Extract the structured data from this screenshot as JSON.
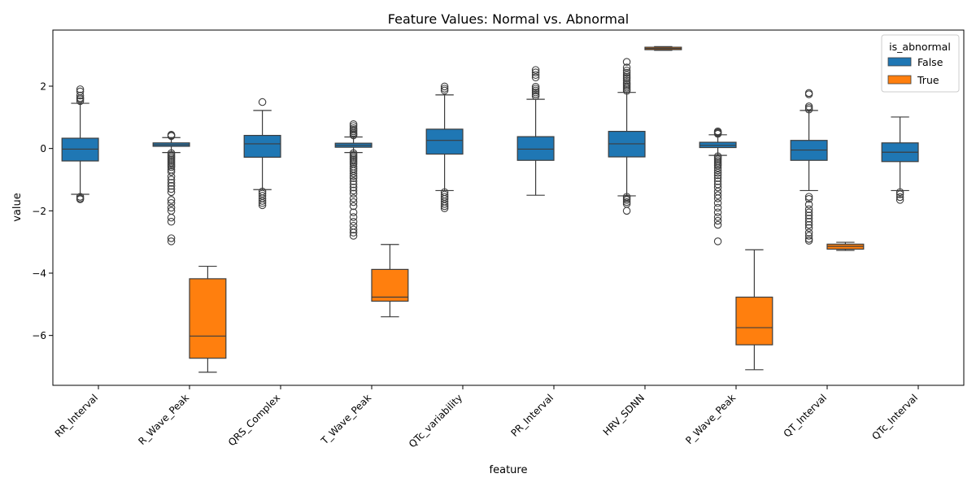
{
  "chart_data": {
    "type": "box",
    "title": "Feature Values: Normal vs. Abnormal",
    "xlabel": "feature",
    "ylabel": "value",
    "ylim": [
      -7.6,
      3.8
    ],
    "yticks": [
      2,
      0,
      -2,
      -4,
      -6
    ],
    "grid": false,
    "legend": {
      "title": "is_abnormal",
      "placement": "top-right",
      "entries": [
        {
          "label": "False",
          "color": "#1f77b4"
        },
        {
          "label": "True",
          "color": "#ff7f0e"
        }
      ]
    },
    "categories": [
      "RR_Interval",
      "R_Wave_Peak",
      "QRS_Complex",
      "T_Wave_Peak",
      "QTc_variability",
      "PR_Interval",
      "HRV_SDNN",
      "P_Wave_Peak",
      "QT_Interval",
      "QTc_Interval"
    ],
    "series": [
      {
        "name": "False",
        "color": "#1f77b4",
        "boxes": [
          {
            "whisker_low": -1.47,
            "q1": -0.4,
            "median": -0.02,
            "q3": 0.33,
            "whisker_high": 1.45,
            "outliers": [
              1.9,
              1.83,
              1.7,
              1.62,
              1.58,
              1.52,
              -1.55,
              -1.6,
              -1.63
            ]
          },
          {
            "whisker_low": -0.13,
            "q1": 0.07,
            "median": 0.12,
            "q3": 0.18,
            "whisker_high": 0.35,
            "outliers": [
              0.44,
              0.42,
              0.4,
              -0.15,
              -0.2,
              -0.25,
              -0.3,
              -0.35,
              -0.4,
              -0.45,
              -0.5,
              -0.55,
              -0.6,
              -0.68,
              -0.75,
              -0.9,
              -1.0,
              -1.1,
              -1.2,
              -1.3,
              -1.4,
              -1.65,
              -1.75,
              -1.9,
              -2.0,
              -2.22,
              -2.35,
              -2.88,
              -2.98
            ]
          },
          {
            "whisker_low": -1.32,
            "q1": -0.28,
            "median": 0.15,
            "q3": 0.42,
            "whisker_high": 1.22,
            "outliers": [
              1.49,
              -1.38,
              -1.45,
              -1.52,
              -1.6,
              -1.68,
              -1.75,
              -1.82
            ]
          },
          {
            "whisker_low": -0.13,
            "q1": 0.04,
            "median": 0.1,
            "q3": 0.17,
            "whisker_high": 0.37,
            "outliers": [
              0.78,
              0.72,
              0.65,
              0.6,
              0.55,
              0.5,
              0.46,
              0.42,
              -0.15,
              -0.2,
              -0.25,
              -0.3,
              -0.35,
              -0.4,
              -0.45,
              -0.5,
              -0.58,
              -0.65,
              -0.72,
              -0.8,
              -0.88,
              -0.95,
              -1.05,
              -1.15,
              -1.25,
              -1.35,
              -1.45,
              -1.6,
              -1.72,
              -1.85,
              -2.05,
              -2.2,
              -2.35,
              -2.48,
              -2.6,
              -2.7,
              -2.8
            ]
          },
          {
            "whisker_low": -1.35,
            "q1": -0.18,
            "median": 0.26,
            "q3": 0.62,
            "whisker_high": 1.72,
            "outliers": [
              1.99,
              1.92,
              1.86,
              -1.4,
              -1.48,
              -1.55,
              -1.62,
              -1.7,
              -1.78,
              -1.85,
              -1.92
            ]
          },
          {
            "whisker_low": -1.5,
            "q1": -0.38,
            "median": -0.02,
            "q3": 0.38,
            "whisker_high": 1.58,
            "outliers": [
              2.52,
              2.44,
              2.36,
              2.28,
              1.98,
              1.92,
              1.86,
              1.8,
              1.74,
              1.68
            ]
          },
          {
            "whisker_low": -1.52,
            "q1": -0.27,
            "median": 0.15,
            "q3": 0.55,
            "whisker_high": 1.8,
            "outliers": [
              2.78,
              2.6,
              2.5,
              2.43,
              2.36,
              2.3,
              2.25,
              2.18,
              2.1,
              2.05,
              2.0,
              1.95,
              1.9,
              1.85,
              -1.55,
              -1.6,
              -1.65,
              -1.72,
              -1.78,
              -2.0
            ]
          },
          {
            "whisker_low": -0.22,
            "q1": 0.03,
            "median": 0.1,
            "q3": 0.2,
            "whisker_high": 0.44,
            "outliers": [
              0.55,
              0.52,
              0.5,
              0.47,
              -0.25,
              -0.3,
              -0.35,
              -0.4,
              -0.45,
              -0.5,
              -0.55,
              -0.62,
              -0.7,
              -0.78,
              -0.86,
              -0.95,
              -1.05,
              -1.15,
              -1.25,
              -1.38,
              -1.5,
              -1.6,
              -1.75,
              -1.9,
              -2.05,
              -2.2,
              -2.32,
              -2.45,
              -2.98
            ]
          },
          {
            "whisker_low": -1.35,
            "q1": -0.38,
            "median": -0.05,
            "q3": 0.26,
            "whisker_high": 1.22,
            "outliers": [
              1.78,
              1.74,
              1.35,
              1.3,
              1.25,
              -1.55,
              -1.62,
              -1.8,
              -1.95,
              -2.05,
              -2.15,
              -2.25,
              -2.35,
              -2.45,
              -2.55,
              -2.7,
              -2.8,
              -2.9,
              -2.96
            ]
          },
          {
            "whisker_low": -1.35,
            "q1": -0.42,
            "median": -0.12,
            "q3": 0.18,
            "whisker_high": 1.01,
            "outliers": [
              -1.4,
              -1.47,
              -1.56,
              -1.65
            ]
          }
        ]
      },
      {
        "name": "True",
        "color": "#ff7f0e",
        "boxes": [
          null,
          {
            "whisker_low": -7.18,
            "q1": -6.73,
            "median": -6.02,
            "q3": -4.18,
            "whisker_high": -3.78,
            "outliers": []
          },
          null,
          {
            "whisker_low": -5.4,
            "q1": -4.9,
            "median": -4.77,
            "q3": -3.88,
            "whisker_high": -3.08,
            "outliers": []
          },
          null,
          null,
          {
            "whisker_low": 3.15,
            "q1": 3.17,
            "median": 3.21,
            "q3": 3.25,
            "whisker_high": 3.27,
            "outliers": []
          },
          {
            "whisker_low": -7.1,
            "q1": -6.3,
            "median": -5.75,
            "q3": -4.77,
            "whisker_high": -3.25,
            "outliers": []
          },
          {
            "whisker_low": -3.27,
            "q1": -3.23,
            "median": -3.14,
            "q3": -3.07,
            "whisker_high": -3.01,
            "outliers": []
          },
          null
        ]
      }
    ]
  }
}
